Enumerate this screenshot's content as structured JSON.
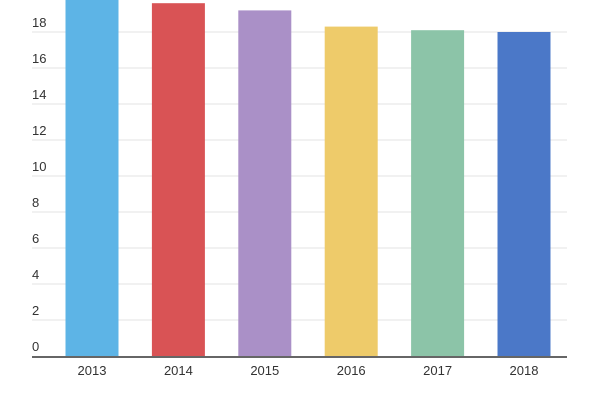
{
  "chart_data": {
    "type": "bar",
    "title": "",
    "xlabel": "",
    "ylabel": "",
    "categories": [
      "2013",
      "2014",
      "2015",
      "2016",
      "2017",
      "2018"
    ],
    "values": [
      19.9,
      19.6,
      19.2,
      18.3,
      18.1,
      18.0
    ],
    "colors": [
      "#5db4e6",
      "#d95355",
      "#aa90c7",
      "#eecb6a",
      "#8cc4a8",
      "#4b78c8"
    ],
    "ylim": [
      0,
      20
    ],
    "yticks": [
      0,
      2,
      4,
      6,
      8,
      10,
      12,
      14,
      16,
      18
    ],
    "grid": true,
    "legend": "none"
  }
}
